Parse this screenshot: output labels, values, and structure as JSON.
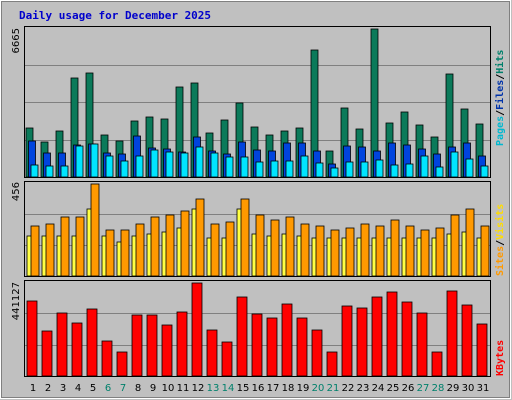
{
  "title": "Daily usage for December 2025",
  "colors": {
    "background": "#c0c0c0",
    "plot_bg": "#c0c0c0",
    "grid": "#808080",
    "title": "#0000cc",
    "pages": "#00e5ff",
    "files": "#0044dd",
    "hits": "#0b7a5a",
    "visits": "#ffff44",
    "sites": "#ff9900",
    "kbytes": "#ff0000",
    "weekend_label": "#00806b",
    "weekday_label": "#000000"
  },
  "legend": {
    "top": [
      {
        "label": "Pages",
        "color": "#00b8d0"
      },
      {
        "label": "Files",
        "color": "#0033aa"
      },
      {
        "label": "Hits",
        "color": "#00806b"
      }
    ],
    "mid": [
      {
        "label": "Sites",
        "color": "#ff9900"
      },
      {
        "label": "Visits",
        "color": "#ffdd00"
      }
    ],
    "bottom": [
      {
        "label": "KBytes",
        "color": "#ff0000"
      }
    ]
  },
  "chart_data": [
    {
      "type": "bar",
      "name": "hits-files-pages",
      "categories": [
        "1",
        "2",
        "3",
        "4",
        "5",
        "6",
        "7",
        "8",
        "9",
        "10",
        "11",
        "12",
        "13",
        "14",
        "15",
        "16",
        "17",
        "18",
        "19",
        "20",
        "21",
        "22",
        "23",
        "24",
        "25",
        "26",
        "27",
        "28",
        "29",
        "30",
        "31"
      ],
      "ymax_label": "6665",
      "ylim": [
        0,
        6665
      ],
      "series": [
        {
          "name": "Hits",
          "values": [
            2200,
            1560,
            2050,
            4460,
            4670,
            1880,
            1640,
            2540,
            2710,
            2620,
            4070,
            4220,
            2000,
            2570,
            3320,
            2240,
            1880,
            2060,
            2200,
            5730,
            1170,
            3090,
            2160,
            6665,
            2410,
            2940,
            2320,
            1780,
            4660,
            3060,
            2400
          ]
        },
        {
          "name": "Files",
          "values": [
            1640,
            1060,
            1090,
            1420,
            1500,
            1080,
            1050,
            1830,
            1310,
            1280,
            1140,
            1820,
            1160,
            1050,
            1590,
            1210,
            1190,
            1520,
            1530,
            1170,
            570,
            1390,
            1370,
            1170,
            1520,
            1430,
            1270,
            1050,
            1360,
            1520,
            930
          ]
        },
        {
          "name": "Pages",
          "values": [
            530,
            480,
            510,
            1390,
            1480,
            960,
            740,
            930,
            1210,
            1140,
            1100,
            1350,
            1080,
            880,
            900,
            690,
            720,
            700,
            950,
            620,
            390,
            670,
            670,
            780,
            540,
            580,
            940,
            470,
            1130,
            800,
            490
          ]
        }
      ]
    },
    {
      "type": "bar",
      "name": "sites-visits",
      "categories": [
        "1",
        "2",
        "3",
        "4",
        "5",
        "6",
        "7",
        "8",
        "9",
        "10",
        "11",
        "12",
        "13",
        "14",
        "15",
        "16",
        "17",
        "18",
        "19",
        "20",
        "21",
        "22",
        "23",
        "24",
        "25",
        "26",
        "27",
        "28",
        "29",
        "30",
        "31"
      ],
      "ymax_label": "456",
      "ylim": [
        0,
        456
      ],
      "series": [
        {
          "name": "Visits",
          "values": [
            200,
            200,
            200,
            200,
            330,
            200,
            170,
            200,
            210,
            220,
            240,
            330,
            190,
            190,
            330,
            210,
            200,
            210,
            200,
            190,
            190,
            190,
            190,
            190,
            190,
            190,
            190,
            190,
            210,
            220,
            190
          ]
        },
        {
          "name": "Sites",
          "values": [
            250,
            260,
            290,
            290,
            456,
            230,
            230,
            260,
            290,
            300,
            320,
            380,
            260,
            270,
            380,
            300,
            280,
            290,
            260,
            250,
            230,
            240,
            260,
            250,
            280,
            250,
            230,
            240,
            300,
            330,
            250
          ]
        }
      ]
    },
    {
      "type": "bar",
      "name": "kbytes",
      "categories": [
        "1",
        "2",
        "3",
        "4",
        "5",
        "6",
        "7",
        "8",
        "9",
        "10",
        "11",
        "12",
        "13",
        "14",
        "15",
        "16",
        "17",
        "18",
        "19",
        "20",
        "21",
        "22",
        "23",
        "24",
        "25",
        "26",
        "27",
        "28",
        "29",
        "30",
        "31"
      ],
      "ymax_label": "441127",
      "ylim": [
        0,
        441127
      ],
      "series": [
        {
          "name": "KBytes",
          "values": [
            358000,
            215000,
            298000,
            250000,
            320000,
            165000,
            113000,
            290000,
            290000,
            240000,
            305000,
            441127,
            220000,
            160000,
            376000,
            295000,
            273000,
            340000,
            275000,
            218000,
            115000,
            333000,
            324000,
            376000,
            400000,
            350000,
            300000,
            113000,
            405000,
            336000,
            245000
          ]
        }
      ]
    }
  ]
}
